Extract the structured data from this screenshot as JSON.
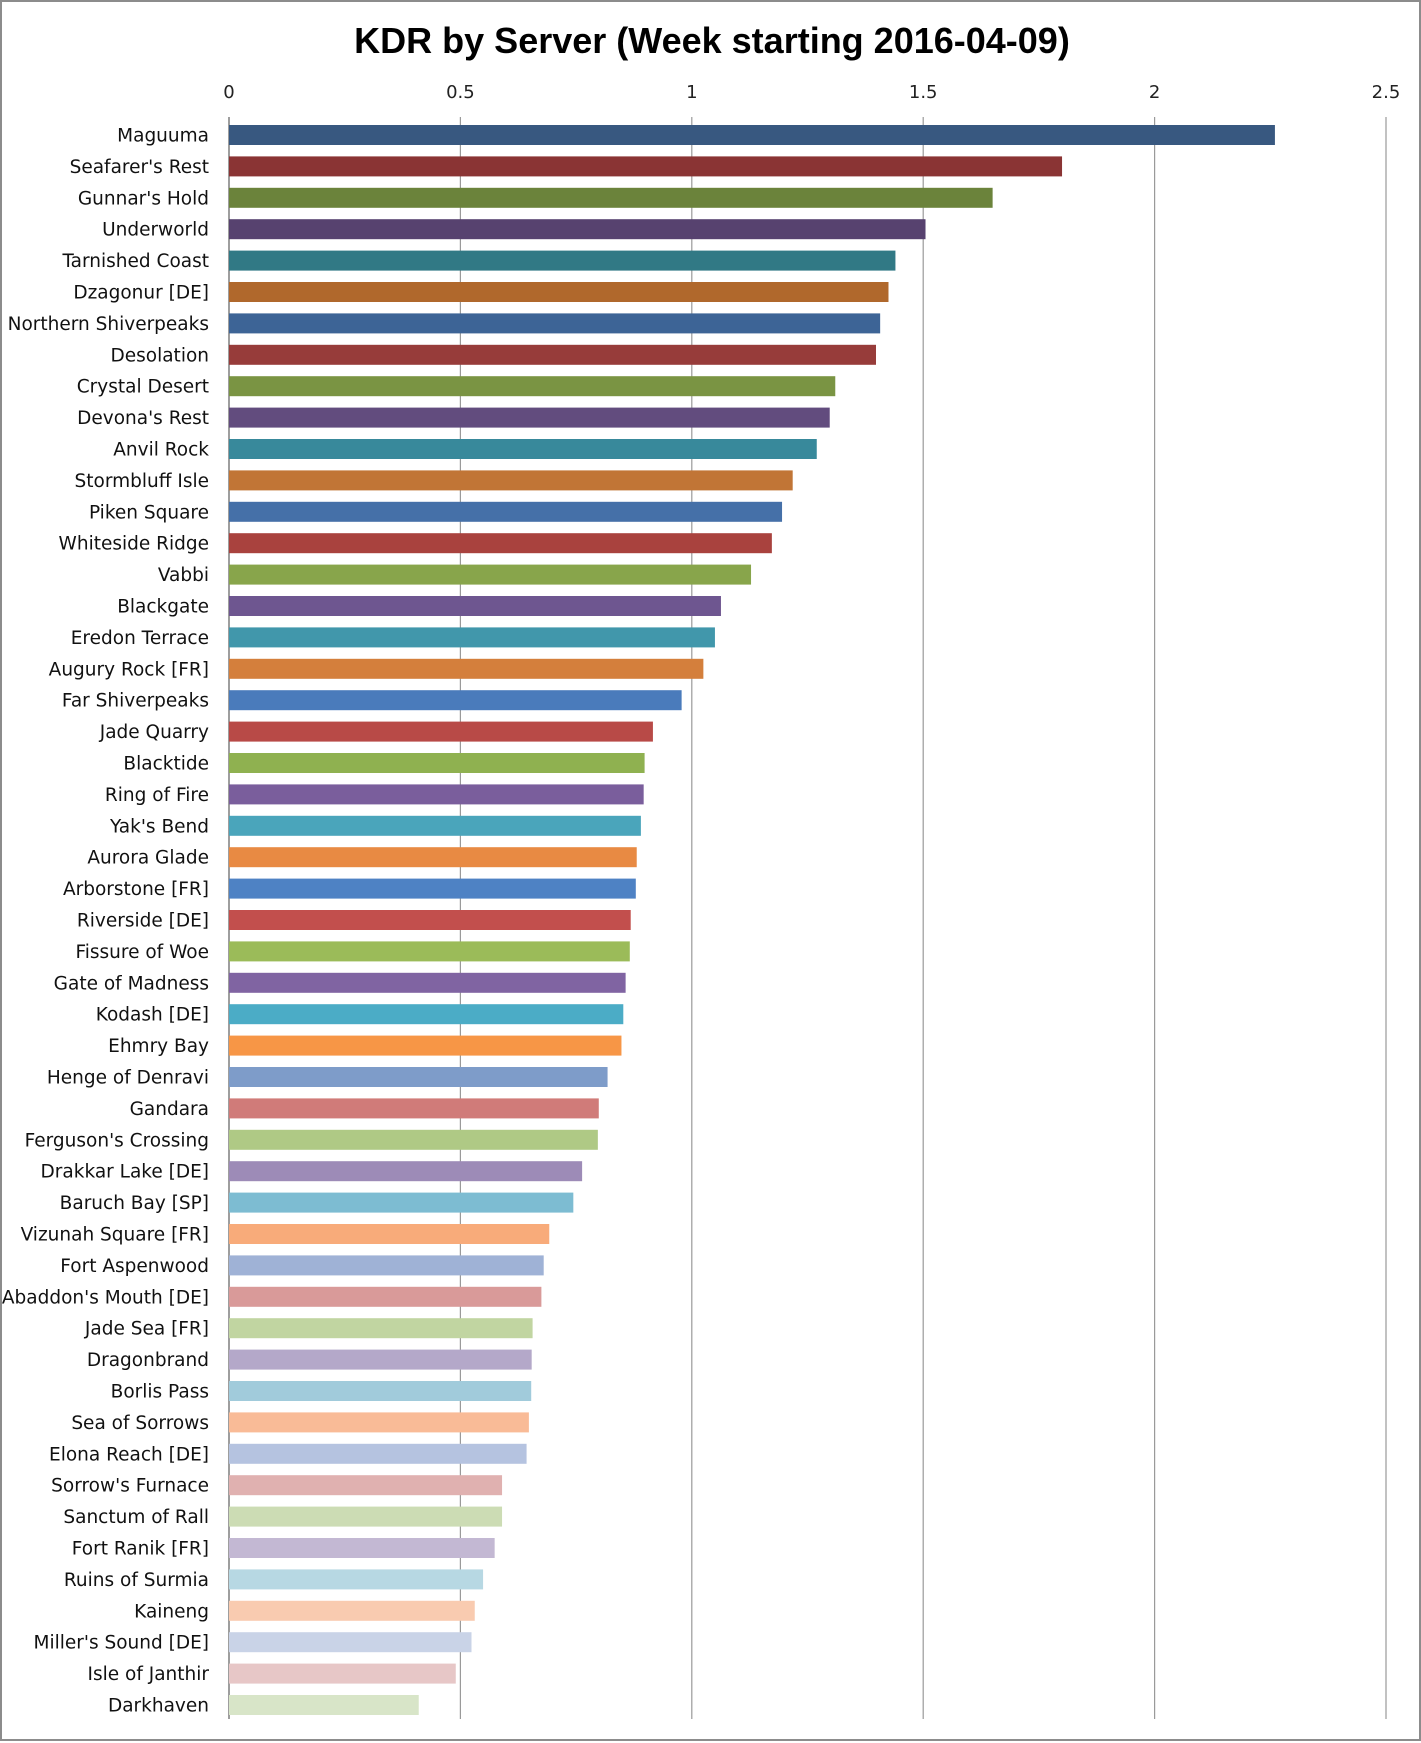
{
  "chart_data": {
    "type": "bar",
    "orientation": "horizontal",
    "title": "KDR by Server (Week starting 2016-04-09)",
    "xlabel": "",
    "ylabel": "",
    "xlim": [
      0,
      2.5
    ],
    "x_ticks": [
      "0",
      "0.5",
      "1",
      "1.5",
      "2",
      "2.5"
    ],
    "x_tick_values": [
      0,
      0.5,
      1,
      1.5,
      2,
      2.5
    ],
    "x_axis_position": "top",
    "grid": true,
    "legend": "none",
    "categories": [
      "Maguuma",
      "Seafarer's Rest",
      "Gunnar's Hold",
      "Underworld",
      "Tarnished Coast",
      "Dzagonur [DE]",
      "Northern Shiverpeaks",
      "Desolation",
      "Crystal Desert",
      "Devona's Rest",
      "Anvil Rock",
      "Stormbluff Isle",
      "Piken Square",
      "Whiteside Ridge",
      "Vabbi",
      "Blackgate",
      "Eredon Terrace",
      "Augury Rock [FR]",
      "Far Shiverpeaks",
      "Jade Quarry",
      "Blacktide",
      "Ring of Fire",
      "Yak's Bend",
      "Aurora Glade",
      "Arborstone [FR]",
      "Riverside [DE]",
      "Fissure of Woe",
      "Gate of Madness",
      "Kodash [DE]",
      "Ehmry Bay",
      "Henge of Denravi",
      "Gandara",
      "Ferguson's Crossing",
      "Drakkar Lake [DE]",
      "Baruch Bay [SP]",
      "Vizunah Square [FR]",
      "Fort Aspenwood",
      "Abaddon's Mouth [DE]",
      "Jade Sea [FR]",
      "Dragonbrand",
      "Borlis Pass",
      "Sea of Sorrows",
      "Elona Reach [DE]",
      "Sorrow's Furnace",
      "Sanctum of Rall",
      "Fort Ranik [FR]",
      "Ruins of Surmia",
      "Kaineng",
      "Miller's Sound [DE]",
      "Isle of Janthir",
      "Darkhaven"
    ],
    "values": [
      2.26,
      1.8,
      1.65,
      1.505,
      1.44,
      1.425,
      1.407,
      1.398,
      1.31,
      1.298,
      1.27,
      1.218,
      1.195,
      1.173,
      1.128,
      1.063,
      1.05,
      1.025,
      0.978,
      0.916,
      0.898,
      0.896,
      0.89,
      0.881,
      0.879,
      0.868,
      0.866,
      0.857,
      0.852,
      0.848,
      0.818,
      0.799,
      0.797,
      0.763,
      0.744,
      0.692,
      0.68,
      0.675,
      0.656,
      0.654,
      0.653,
      0.648,
      0.643,
      0.59,
      0.59,
      0.574,
      0.549,
      0.531,
      0.524,
      0.49,
      0.41
    ],
    "colors": [
      "#385880",
      "#8a3434",
      "#6b833b",
      "#57426f",
      "#317985",
      "#b0682c",
      "#3d6496",
      "#973c3a",
      "#7a9443",
      "#624c7e",
      "#38899b",
      "#c17536",
      "#4570a8",
      "#a9423e",
      "#88a54b",
      "#6e5690",
      "#4197ab",
      "#d47f3c",
      "#4a7bbb",
      "#b84a47",
      "#8fb150",
      "#7a5e9c",
      "#4aa5bb",
      "#e88a43",
      "#4e82c4",
      "#c24f4d",
      "#9bbb59",
      "#8064a2",
      "#4bacc6",
      "#f79646",
      "#7e9cc9",
      "#d07b79",
      "#afc985",
      "#9d8bb7",
      "#7dbcd2",
      "#f8ab7a",
      "#9fb2d6",
      "#d99a99",
      "#c1d5a1",
      "#b4a8c9",
      "#a1cbdb",
      "#f9bb97",
      "#b5c3e0",
      "#e0b1b0",
      "#ccdcb4",
      "#c3b8d3",
      "#b7d8e3",
      "#f9cbb0",
      "#c9d3e7",
      "#e7c7c7",
      "#d8e5c8"
    ]
  }
}
